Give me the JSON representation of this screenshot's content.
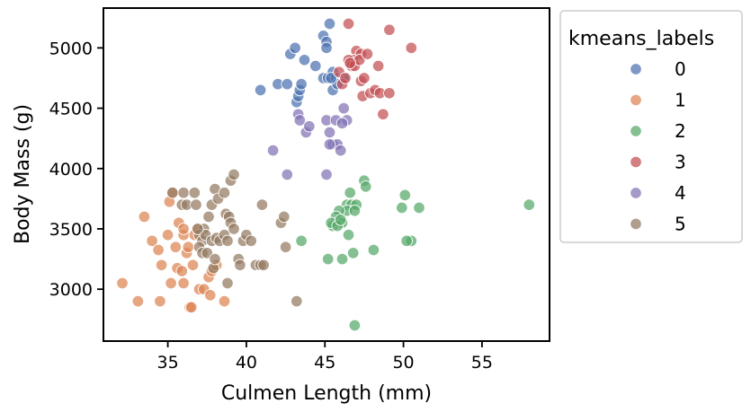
{
  "chart_data": {
    "type": "scatter",
    "title": "",
    "xlabel": "Culmen Length (mm)",
    "ylabel": "Body Mass (g)",
    "xlim": [
      30.9,
      59.3
    ],
    "ylim": [
      2570,
      5330
    ],
    "xticks": [
      35,
      40,
      45,
      50,
      55
    ],
    "yticks": [
      3000,
      3500,
      4000,
      4500,
      5000
    ],
    "grid": false,
    "legend": {
      "title": "kmeans_labels",
      "placement": "outside-top-right"
    },
    "series": [
      {
        "name": "0",
        "color": "#4c72b0",
        "points": [
          [
            45.3,
            5200
          ],
          [
            42.8,
            4950
          ],
          [
            43.1,
            5000
          ],
          [
            43.7,
            4900
          ],
          [
            44.4,
            4850
          ],
          [
            44.9,
            5100
          ],
          [
            45.1,
            5050
          ],
          [
            45.1,
            5000
          ],
          [
            42.0,
            4700
          ],
          [
            40.9,
            4650
          ],
          [
            42.6,
            4700
          ],
          [
            43.2,
            4550
          ],
          [
            43.3,
            4600
          ],
          [
            43.4,
            4650
          ],
          [
            43.5,
            4700
          ],
          [
            44.9,
            4750
          ],
          [
            45.2,
            4750
          ],
          [
            45.5,
            4800
          ],
          [
            45.5,
            4650
          ],
          [
            45.7,
            4750
          ],
          [
            46.2,
            4750
          ],
          [
            45.8,
            4700
          ],
          [
            45.4,
            4750
          ]
        ]
      },
      {
        "name": "1",
        "color": "#dd8452",
        "points": [
          [
            32.1,
            3050
          ],
          [
            33.1,
            2900
          ],
          [
            33.5,
            3600
          ],
          [
            34.0,
            3400
          ],
          [
            34.4,
            3325
          ],
          [
            34.6,
            3200
          ],
          [
            34.5,
            2900
          ],
          [
            35.0,
            3450
          ],
          [
            35.1,
            3725
          ],
          [
            35.2,
            3050
          ],
          [
            35.3,
            3800
          ],
          [
            35.5,
            3350
          ],
          [
            35.6,
            3175
          ],
          [
            35.7,
            3550
          ],
          [
            35.9,
            3150
          ],
          [
            36.0,
            3450
          ],
          [
            36.0,
            3050
          ],
          [
            36.2,
            3300
          ],
          [
            36.3,
            3350
          ],
          [
            36.4,
            2850
          ],
          [
            36.5,
            2850
          ],
          [
            36.6,
            3200
          ],
          [
            36.7,
            3450
          ],
          [
            36.9,
            3500
          ],
          [
            37.0,
            3000
          ],
          [
            37.3,
            3000
          ],
          [
            37.6,
            3100
          ],
          [
            37.7,
            2950
          ],
          [
            37.8,
            3150
          ],
          [
            38.1,
            3200
          ],
          [
            38.6,
            2900
          ],
          [
            36.0,
            3500
          ]
        ]
      },
      {
        "name": "2",
        "color": "#55a868",
        "points": [
          [
            58.0,
            3700
          ],
          [
            51.0,
            3675
          ],
          [
            50.1,
            3780
          ],
          [
            50.5,
            3400
          ],
          [
            50.2,
            3400
          ],
          [
            49.9,
            3675
          ],
          [
            48.1,
            3325
          ],
          [
            47.5,
            3900
          ],
          [
            47.6,
            3850
          ],
          [
            46.6,
            3800
          ],
          [
            46.4,
            3700
          ],
          [
            46.7,
            3700
          ],
          [
            47.0,
            3700
          ],
          [
            46.4,
            3650
          ],
          [
            46.9,
            3650
          ],
          [
            45.9,
            3650
          ],
          [
            45.7,
            3600
          ],
          [
            46.1,
            3550
          ],
          [
            45.5,
            3525
          ],
          [
            45.4,
            3550
          ],
          [
            45.8,
            3525
          ],
          [
            46.5,
            3450
          ],
          [
            46.0,
            3575
          ],
          [
            43.5,
            3400
          ],
          [
            46.8,
            3300
          ],
          [
            45.2,
            3250
          ],
          [
            46.1,
            3250
          ],
          [
            46.9,
            2700
          ]
        ]
      },
      {
        "name": "3",
        "color": "#c44e52",
        "points": [
          [
            46.5,
            5200
          ],
          [
            49.1,
            5150
          ],
          [
            50.5,
            5000
          ],
          [
            47.0,
            4975
          ],
          [
            47.3,
            4950
          ],
          [
            46.8,
            4900
          ],
          [
            46.5,
            4900
          ],
          [
            46.7,
            4850
          ],
          [
            46.9,
            4850
          ],
          [
            47.2,
            4900
          ],
          [
            48.4,
            4850
          ],
          [
            45.9,
            4800
          ],
          [
            46.1,
            4700
          ],
          [
            47.3,
            4725
          ],
          [
            47.5,
            4750
          ],
          [
            47.4,
            4600
          ],
          [
            47.9,
            4625
          ],
          [
            48.2,
            4650
          ],
          [
            48.5,
            4625
          ],
          [
            49.1,
            4625
          ],
          [
            48.7,
            4450
          ],
          [
            46.3,
            4750
          ],
          [
            47.7,
            4950
          ],
          [
            46.6,
            4875
          ]
        ]
      },
      {
        "name": "4",
        "color": "#8172b3",
        "points": [
          [
            43.3,
            4450
          ],
          [
            43.4,
            4400
          ],
          [
            43.8,
            4300
          ],
          [
            44.0,
            4350
          ],
          [
            45.1,
            4400
          ],
          [
            45.7,
            4400
          ],
          [
            46.4,
            4400
          ],
          [
            46.1,
            4375
          ],
          [
            46.2,
            4500
          ],
          [
            45.3,
            4300
          ],
          [
            45.5,
            4200
          ],
          [
            45.8,
            4200
          ],
          [
            46.0,
            4150
          ],
          [
            45.3,
            4200
          ],
          [
            41.7,
            4150
          ],
          [
            42.6,
            3950
          ],
          [
            45.1,
            3950
          ]
        ]
      },
      {
        "name": "5",
        "color": "#937860",
        "points": [
          [
            35.3,
            3800
          ],
          [
            35.9,
            3700
          ],
          [
            36.0,
            3800
          ],
          [
            36.2,
            3700
          ],
          [
            36.7,
            3800
          ],
          [
            36.8,
            3700
          ],
          [
            37.6,
            3600
          ],
          [
            37.8,
            3700
          ],
          [
            38.0,
            3830
          ],
          [
            38.2,
            3750
          ],
          [
            38.6,
            3800
          ],
          [
            39.0,
            3900
          ],
          [
            39.2,
            3950
          ],
          [
            38.7,
            3625
          ],
          [
            38.9,
            3600
          ],
          [
            37.3,
            3500
          ],
          [
            37.0,
            3450
          ],
          [
            37.2,
            3400
          ],
          [
            37.4,
            3450
          ],
          [
            37.8,
            3400
          ],
          [
            38.1,
            3425
          ],
          [
            38.3,
            3400
          ],
          [
            38.6,
            3450
          ],
          [
            36.9,
            3500
          ],
          [
            37.0,
            3350
          ],
          [
            37.2,
            3300
          ],
          [
            37.5,
            3300
          ],
          [
            38.8,
            3400
          ],
          [
            39.0,
            3550
          ],
          [
            39.2,
            3500
          ],
          [
            39.5,
            3250
          ],
          [
            39.6,
            3200
          ],
          [
            39.8,
            3400
          ],
          [
            40.0,
            3450
          ],
          [
            40.3,
            3400
          ],
          [
            40.6,
            3200
          ],
          [
            40.9,
            3200
          ],
          [
            41.0,
            3700
          ],
          [
            41.1,
            3200
          ],
          [
            42.2,
            3550
          ],
          [
            42.4,
            3600
          ],
          [
            42.5,
            3350
          ],
          [
            38.8,
            3050
          ],
          [
            37.9,
            3175
          ],
          [
            43.2,
            2900
          ],
          [
            38.0,
            3250
          ]
        ]
      }
    ]
  }
}
